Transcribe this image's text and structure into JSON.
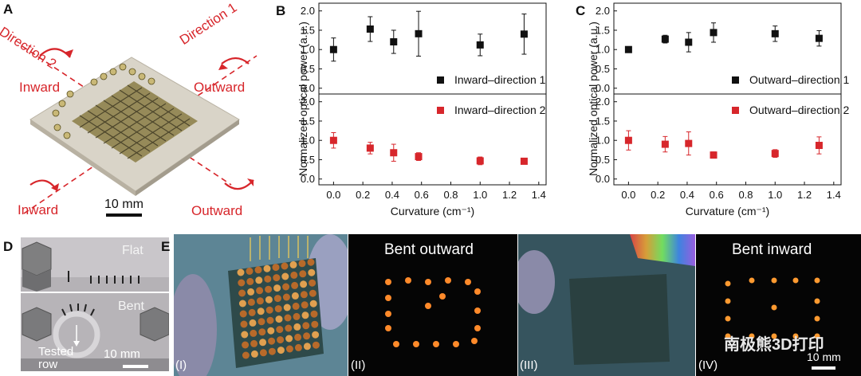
{
  "panels": {
    "a": {
      "letter": "A",
      "direction_1": "Direction 1",
      "direction_2": "Direction 2",
      "inward_tl": "Inward",
      "outward_tr": "Outward",
      "inward_bl": "Inward",
      "outward_br": "Outward",
      "scale_bar": "10 mm"
    },
    "b": {
      "letter": "B"
    },
    "c": {
      "letter": "C"
    },
    "d": {
      "letter": "D",
      "flat": "Flat",
      "bent": "Bent",
      "tested_row": "Tested\nrow",
      "scale_bar": "10 mm"
    },
    "e": {
      "letter": "E",
      "bent_outward": "Bent outward",
      "bent_inward": "Bent inward",
      "roman_1": "(I)",
      "roman_2": "(II)",
      "roman_3": "(III)",
      "roman_4": "(IV)",
      "scale_bar": "10 mm",
      "watermark": "南极熊3D打印"
    }
  },
  "colors": {
    "accent_red": "#d7262b",
    "series_black": "#111111"
  },
  "chart_data": [
    {
      "id": "B",
      "type": "scatter",
      "xlabel": "Curvature (cm⁻¹)",
      "ylabel": "Normalized optical power (a.u.)",
      "xlim": [
        -0.1,
        1.45
      ],
      "x_ticks": [
        "0.0",
        "0.2",
        "0.4",
        "0.6",
        "0.8",
        "1.0",
        "1.2",
        "1.4"
      ],
      "subplots": [
        {
          "ylim": [
            -0.15,
            2.2
          ],
          "y_ticks": [
            "0.0",
            "0.5",
            "1.0",
            "1.5",
            "2.0"
          ],
          "legend": "top-right",
          "series": [
            {
              "name": "Inward–direction 1",
              "color": "#111111",
              "x": [
                0.0,
                0.25,
                0.41,
                0.58,
                1.0,
                1.3
              ],
              "y": [
                1.0,
                1.53,
                1.2,
                1.41,
                1.12,
                1.4
              ],
              "err": [
                0.3,
                0.32,
                0.3,
                0.58,
                0.28,
                0.52
              ]
            }
          ]
        },
        {
          "ylim": [
            -0.15,
            2.2
          ],
          "y_ticks": [
            "0.0",
            "0.5",
            "1.0",
            "1.5",
            "2.0"
          ],
          "legend": "top-right",
          "series": [
            {
              "name": "Inward–direction 2",
              "color": "#d7262b",
              "x": [
                0.0,
                0.25,
                0.41,
                0.58,
                1.0,
                1.3
              ],
              "y": [
                1.0,
                0.8,
                0.68,
                0.58,
                0.47,
                0.46
              ],
              "err": [
                0.2,
                0.15,
                0.22,
                0.1,
                0.1,
                0.06
              ]
            }
          ]
        }
      ]
    },
    {
      "id": "C",
      "type": "scatter",
      "xlabel": "Curvature (cm⁻¹)",
      "ylabel": "Normalized optical power (a.u.)",
      "xlim": [
        -0.1,
        1.45
      ],
      "x_ticks": [
        "0.0",
        "0.2",
        "0.4",
        "0.6",
        "0.8",
        "1.0",
        "1.2",
        "1.4"
      ],
      "subplots": [
        {
          "ylim": [
            -0.15,
            2.2
          ],
          "y_ticks": [
            "0.0",
            "0.5",
            "1.0",
            "1.5",
            "2.0"
          ],
          "legend": "top-right",
          "series": [
            {
              "name": "Outward–direction 1",
              "color": "#111111",
              "x": [
                0.0,
                0.25,
                0.41,
                0.58,
                1.0,
                1.3
              ],
              "y": [
                1.0,
                1.27,
                1.19,
                1.44,
                1.41,
                1.29
              ],
              "err": [
                0.03,
                0.1,
                0.25,
                0.25,
                0.2,
                0.2
              ]
            }
          ]
        },
        {
          "ylim": [
            -0.15,
            2.2
          ],
          "y_ticks": [
            "0.0",
            "0.5",
            "1.0",
            "1.5",
            "2.0"
          ],
          "legend": "top-right",
          "series": [
            {
              "name": "Outward–direction 2",
              "color": "#d7262b",
              "x": [
                0.0,
                0.25,
                0.41,
                0.58,
                1.0,
                1.3
              ],
              "y": [
                1.0,
                0.9,
                0.92,
                0.62,
                0.66,
                0.87
              ],
              "err": [
                0.25,
                0.2,
                0.3,
                0.08,
                0.1,
                0.22
              ]
            }
          ]
        }
      ]
    }
  ]
}
